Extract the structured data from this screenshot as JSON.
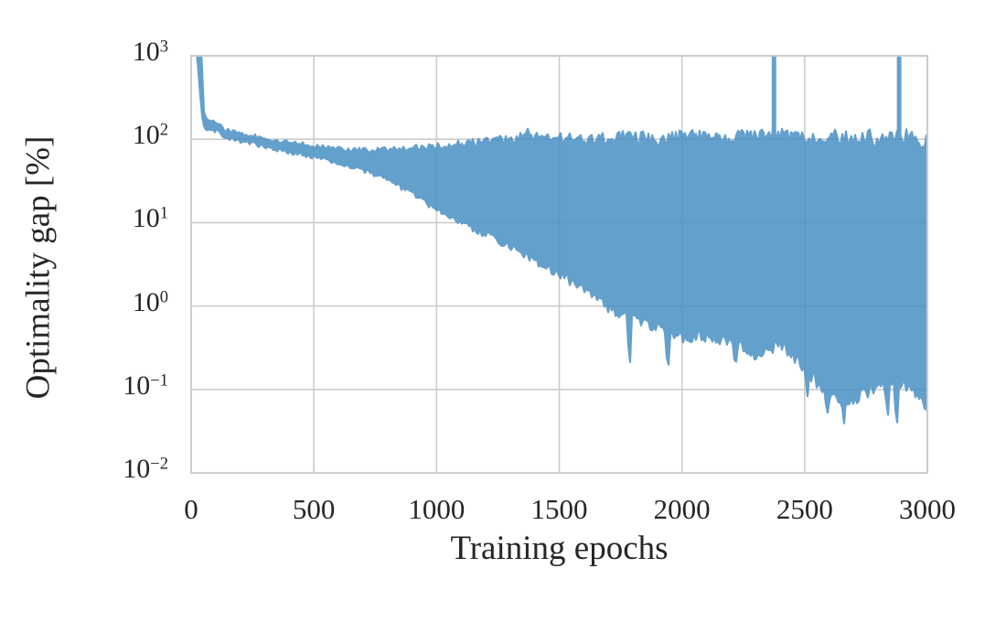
{
  "figure": {
    "background": "#ffffff"
  },
  "chart_data": {
    "type": "line",
    "title": "",
    "xlabel": "Training epochs",
    "ylabel": "Optimality gap [%]",
    "series_name": "optimality gap",
    "x_ticks": [
      0,
      500,
      1000,
      1500,
      2000,
      2500,
      3000
    ],
    "y_tick_exponents": [
      3,
      2,
      1,
      0,
      -1,
      -2
    ],
    "xlim": [
      0,
      3000
    ],
    "ylim_log10": [
      -2,
      3
    ],
    "y_scale": "log",
    "grid": true,
    "legend": false,
    "line_color": "#1f77b4",
    "band_fill": "#4a90c4",
    "band_opacity": 0.85,
    "grid_color": "#cccccc",
    "text_color": "#262626",
    "representation": "single noisy training curve drawn as dense oscillating band; envelope sampled as [epoch, upper%, lower%]",
    "envelope_points": [
      [
        20,
        2600,
        1500
      ],
      [
        36,
        2400,
        380
      ],
      [
        48,
        430,
        155
      ],
      [
        53,
        178,
        148
      ],
      [
        70,
        168,
        140
      ],
      [
        110,
        158,
        132
      ],
      [
        140,
        130,
        112
      ],
      [
        180,
        122,
        104
      ],
      [
        240,
        112,
        96
      ],
      [
        300,
        100,
        85
      ],
      [
        380,
        93,
        76
      ],
      [
        460,
        86,
        68
      ],
      [
        540,
        80,
        61
      ],
      [
        620,
        76,
        53
      ],
      [
        700,
        73,
        45
      ],
      [
        780,
        74,
        37
      ],
      [
        860,
        77,
        28
      ],
      [
        940,
        80,
        20
      ],
      [
        1020,
        84,
        14.5
      ],
      [
        1100,
        88,
        11
      ],
      [
        1200,
        93,
        8
      ],
      [
        1300,
        101,
        5.8
      ],
      [
        1400,
        104,
        4.0
      ],
      [
        1500,
        103,
        2.8
      ],
      [
        1600,
        101,
        1.8
      ],
      [
        1700,
        103,
        1.1
      ],
      [
        1800,
        106,
        0.8
      ],
      [
        1900,
        101,
        0.65
      ],
      [
        2000,
        104,
        0.5
      ],
      [
        2100,
        109,
        0.52
      ],
      [
        2200,
        106,
        0.45
      ],
      [
        2300,
        108,
        0.3
      ],
      [
        2400,
        111,
        0.42
      ],
      [
        2500,
        101,
        0.22
      ],
      [
        2600,
        99,
        0.1
      ],
      [
        2700,
        103,
        0.09
      ],
      [
        2800,
        101,
        0.13
      ],
      [
        2900,
        111,
        0.15
      ],
      [
        2960,
        96,
        0.1
      ],
      [
        3000,
        88,
        0.062
      ]
    ],
    "spikes": {
      "epochs": [
        2375,
        2885
      ],
      "reach": "clipped at top of axis (>= 10^3)"
    },
    "initial_drop": {
      "from_epoch": 30,
      "to_epoch": 50,
      "start_value": ">1000 (clipped)",
      "end_value": 160
    },
    "upper_envelope_plateau": "fluctuates ~60-130% after epoch 1300",
    "final_min_value": 0.06
  }
}
